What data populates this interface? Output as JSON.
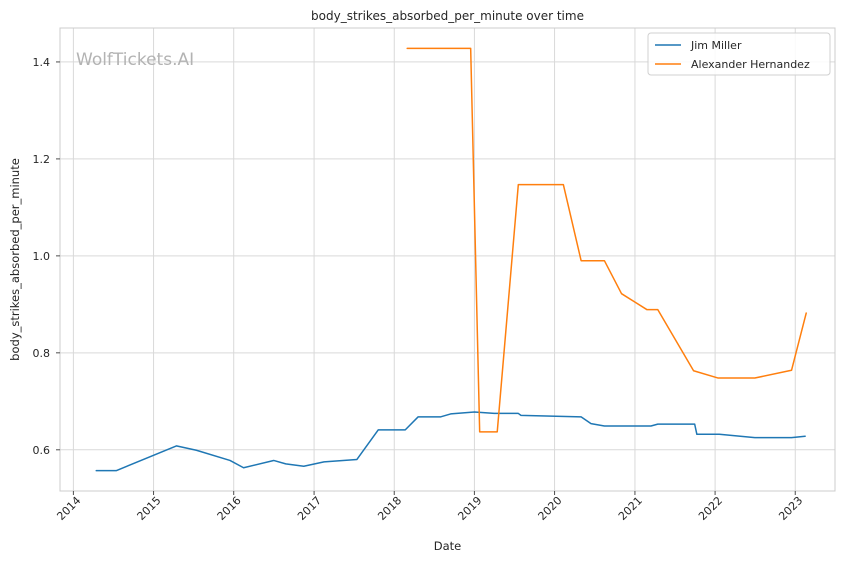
{
  "chart_data": {
    "type": "line",
    "title": "body_strikes_absorbed_per_minute over time",
    "xlabel": "Date",
    "ylabel": "body_strikes_absorbed_per_minute",
    "watermark": "WolfTickets.AI",
    "x_type": "date",
    "xlim": [
      "2013-11-01",
      "2023-07-01"
    ],
    "ylim": [
      0.515,
      1.47
    ],
    "x_ticks": [
      {
        "date": "2014-01-01",
        "label": "2014"
      },
      {
        "date": "2015-01-01",
        "label": "2015"
      },
      {
        "date": "2016-01-01",
        "label": "2016"
      },
      {
        "date": "2017-01-01",
        "label": "2017"
      },
      {
        "date": "2018-01-01",
        "label": "2018"
      },
      {
        "date": "2019-01-01",
        "label": "2019"
      },
      {
        "date": "2020-01-01",
        "label": "2020"
      },
      {
        "date": "2021-01-01",
        "label": "2021"
      },
      {
        "date": "2022-01-01",
        "label": "2022"
      },
      {
        "date": "2023-01-01",
        "label": "2023"
      }
    ],
    "y_ticks": [
      {
        "value": 0.6,
        "label": "0.6"
      },
      {
        "value": 0.8,
        "label": "0.8"
      },
      {
        "value": 1.0,
        "label": "1.0"
      },
      {
        "value": 1.2,
        "label": "1.2"
      },
      {
        "value": 1.4,
        "label": "1.4"
      }
    ],
    "grid": true,
    "legend_position": "top-right",
    "series": [
      {
        "name": "Jim Miller",
        "color": "#1f77b4",
        "points": [
          {
            "x": "2014-04-15",
            "y": 0.557
          },
          {
            "x": "2014-07-15",
            "y": 0.557
          },
          {
            "x": "2015-04-15",
            "y": 0.608
          },
          {
            "x": "2015-07-15",
            "y": 0.599
          },
          {
            "x": "2015-12-15",
            "y": 0.578
          },
          {
            "x": "2016-02-15",
            "y": 0.563
          },
          {
            "x": "2016-07-01",
            "y": 0.578
          },
          {
            "x": "2016-08-25",
            "y": 0.571
          },
          {
            "x": "2016-11-15",
            "y": 0.566
          },
          {
            "x": "2017-02-15",
            "y": 0.575
          },
          {
            "x": "2017-07-15",
            "y": 0.58
          },
          {
            "x": "2017-10-20",
            "y": 0.641
          },
          {
            "x": "2018-02-20",
            "y": 0.641
          },
          {
            "x": "2018-04-20",
            "y": 0.668
          },
          {
            "x": "2018-08-01",
            "y": 0.668
          },
          {
            "x": "2018-09-15",
            "y": 0.674
          },
          {
            "x": "2019-01-01",
            "y": 0.678
          },
          {
            "x": "2019-04-01",
            "y": 0.675
          },
          {
            "x": "2019-07-20",
            "y": 0.675
          },
          {
            "x": "2019-08-01",
            "y": 0.671
          },
          {
            "x": "2020-05-01",
            "y": 0.668
          },
          {
            "x": "2020-06-15",
            "y": 0.654
          },
          {
            "x": "2020-08-15",
            "y": 0.649
          },
          {
            "x": "2021-03-15",
            "y": 0.649
          },
          {
            "x": "2021-04-15",
            "y": 0.653
          },
          {
            "x": "2021-09-30",
            "y": 0.653
          },
          {
            "x": "2021-10-10",
            "y": 0.632
          },
          {
            "x": "2022-01-20",
            "y": 0.632
          },
          {
            "x": "2022-07-01",
            "y": 0.625
          },
          {
            "x": "2022-12-15",
            "y": 0.625
          },
          {
            "x": "2023-02-15",
            "y": 0.628
          }
        ]
      },
      {
        "name": "Alexander Hernandez",
        "color": "#ff7f0e",
        "points": [
          {
            "x": "2018-03-01",
            "y": 1.428
          },
          {
            "x": "2018-12-15",
            "y": 1.428
          },
          {
            "x": "2019-01-25",
            "y": 0.637
          },
          {
            "x": "2019-04-15",
            "y": 0.637
          },
          {
            "x": "2019-07-20",
            "y": 1.147
          },
          {
            "x": "2020-02-10",
            "y": 1.147
          },
          {
            "x": "2020-05-01",
            "y": 0.99
          },
          {
            "x": "2020-08-15",
            "y": 0.99
          },
          {
            "x": "2020-11-01",
            "y": 0.922
          },
          {
            "x": "2021-02-25",
            "y": 0.889
          },
          {
            "x": "2021-04-15",
            "y": 0.889
          },
          {
            "x": "2021-09-25",
            "y": 0.763
          },
          {
            "x": "2022-01-15",
            "y": 0.748
          },
          {
            "x": "2022-07-01",
            "y": 0.748
          },
          {
            "x": "2022-12-15",
            "y": 0.764
          },
          {
            "x": "2023-02-20",
            "y": 0.882
          }
        ]
      }
    ]
  }
}
